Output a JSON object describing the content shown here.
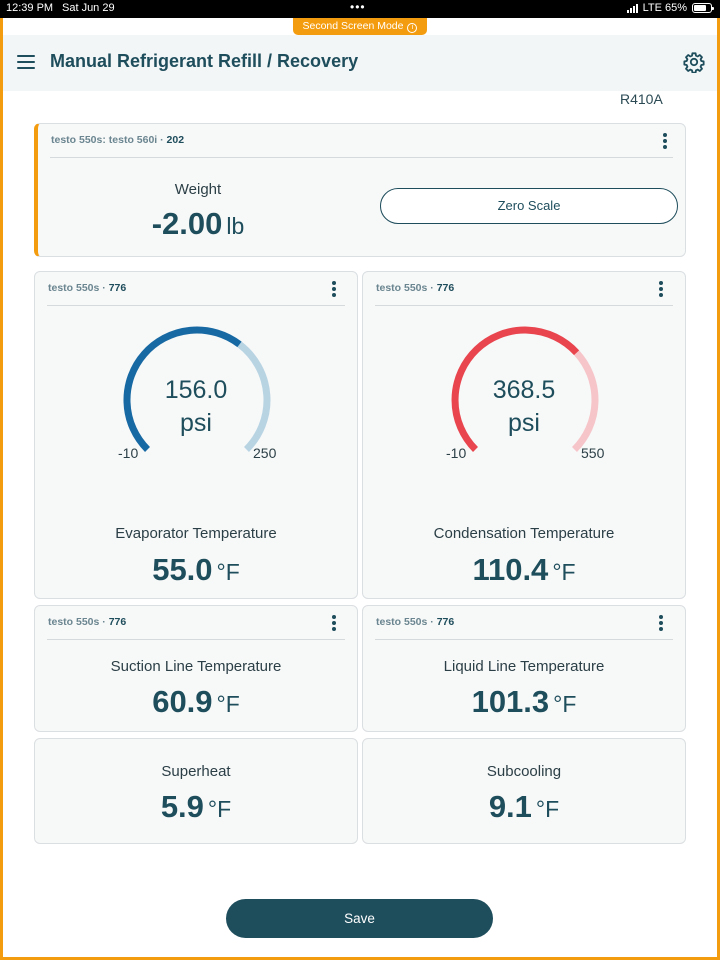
{
  "status_bar": {
    "time": "12:39 PM",
    "date": "Sat Jun 29",
    "carrier": "LTE 65%",
    "dots": "•••"
  },
  "mode_banner": {
    "label": "Second Screen Mode"
  },
  "header": {
    "title": "Manual Refrigerant Refill / Recovery"
  },
  "refrigerant": "R410A",
  "weight_card": {
    "source": "testo 550s: testo 560i · ",
    "source_id": "202",
    "label": "Weight",
    "value": "-2.00",
    "unit": "lb",
    "button_label": "Zero Scale"
  },
  "gauges": [
    {
      "source": "testo 550s · ",
      "source_id": "776",
      "value": "156.0",
      "value_num": 156.0,
      "unit": "psi",
      "min": "-10",
      "max": "250",
      "min_num": -10,
      "max_num": 250,
      "color": "#1769a3",
      "track_color": "#b8d4e3"
    },
    {
      "source": "testo 550s · ",
      "source_id": "776",
      "value": "368.5",
      "value_num": 368.5,
      "unit": "psi",
      "min": "-10",
      "max": "550",
      "min_num": -10,
      "max_num": 550,
      "color": "#e8454e",
      "track_color": "#f6c5c9"
    }
  ],
  "evaporator": {
    "label": "Evaporator Temperature",
    "value": "55.0",
    "unit": "°F"
  },
  "condensation": {
    "label": "Condensation Temperature",
    "value": "110.4",
    "unit": "°F"
  },
  "suction": {
    "source": "testo 550s · ",
    "source_id": "776",
    "label": "Suction Line Temperature",
    "value": "60.9",
    "unit": "°F"
  },
  "liquid": {
    "source": "testo 550s · ",
    "source_id": "776",
    "label": "Liquid Line Temperature",
    "value": "101.3",
    "unit": "°F"
  },
  "superheat": {
    "label": "Superheat",
    "value": "5.9",
    "unit": "°F"
  },
  "subcooling": {
    "label": "Subcooling",
    "value": "9.1",
    "unit": "°F"
  },
  "footer": {
    "save_label": "Save"
  }
}
